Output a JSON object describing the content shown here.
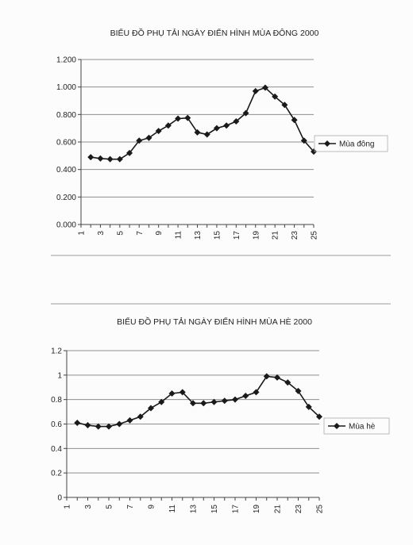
{
  "chart_data": [
    {
      "type": "line",
      "title": "BIỂU ĐỒ PHỤ TẢI NGÀY ĐIỂN HÌNH MÙA ĐÔNG 2000",
      "xlabel": "",
      "ylabel": "",
      "y_tick_labels": [
        "0.000",
        "0.200",
        "0.400",
        "0.600",
        "0.800",
        "1.000",
        "1.200"
      ],
      "x_tick_labels": [
        "1",
        "3",
        "5",
        "7",
        "9",
        "11",
        "13",
        "15",
        "17",
        "19",
        "21",
        "23",
        "25"
      ],
      "ylim": [
        0,
        1.2
      ],
      "xlim": [
        1,
        25
      ],
      "grid": true,
      "legend_position": "right",
      "series": [
        {
          "name": "Mùa đông",
          "x": [
            2,
            3,
            4,
            5,
            6,
            7,
            8,
            9,
            10,
            11,
            12,
            13,
            14,
            15,
            16,
            17,
            18,
            19,
            20,
            21,
            22,
            23,
            24,
            25
          ],
          "values": [
            0.49,
            0.48,
            0.475,
            0.475,
            0.52,
            0.61,
            0.63,
            0.68,
            0.72,
            0.77,
            0.775,
            0.67,
            0.655,
            0.7,
            0.72,
            0.75,
            0.81,
            0.97,
            0.995,
            0.93,
            0.87,
            0.76,
            0.61,
            0.53
          ]
        }
      ]
    },
    {
      "type": "line",
      "title": "BIỂU ĐỒ PHỤ TẢI NGÀY ĐIỂN HÌNH MÙA HÈ 2000",
      "xlabel": "",
      "ylabel": "",
      "y_tick_labels": [
        "0",
        "0.2",
        "0.4",
        "0.6",
        "0.8",
        "1",
        "1.2"
      ],
      "x_tick_labels": [
        "1",
        "3",
        "5",
        "7",
        "9",
        "11",
        "13",
        "15",
        "17",
        "19",
        "21",
        "23",
        "25"
      ],
      "ylim": [
        0,
        1.2
      ],
      "xlim": [
        1,
        25
      ],
      "grid": true,
      "legend_position": "right",
      "series": [
        {
          "name": "Mùa hè",
          "x": [
            2,
            3,
            4,
            5,
            6,
            7,
            8,
            9,
            10,
            11,
            12,
            13,
            14,
            15,
            16,
            17,
            18,
            19,
            20,
            21,
            22,
            23,
            24,
            25
          ],
          "values": [
            0.61,
            0.59,
            0.58,
            0.58,
            0.6,
            0.63,
            0.66,
            0.73,
            0.78,
            0.85,
            0.86,
            0.77,
            0.77,
            0.78,
            0.79,
            0.8,
            0.83,
            0.86,
            0.99,
            0.98,
            0.94,
            0.87,
            0.74,
            0.66
          ]
        }
      ]
    }
  ],
  "colors": {
    "line": "#1a1a1a",
    "grid": "#8f8f8f",
    "paper": "#fcfcfc"
  }
}
